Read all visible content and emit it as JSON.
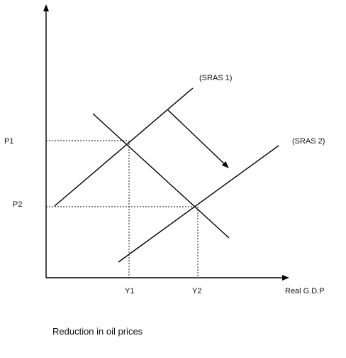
{
  "labels": {
    "p1": "P1",
    "p2": "P2",
    "y1": "Y1",
    "y2": "Y2",
    "x_axis": "Real G.D.P",
    "sras1": "(SRAS 1)",
    "sras2": "(SRAS 2)"
  },
  "caption": "Reduction in oil prices"
}
